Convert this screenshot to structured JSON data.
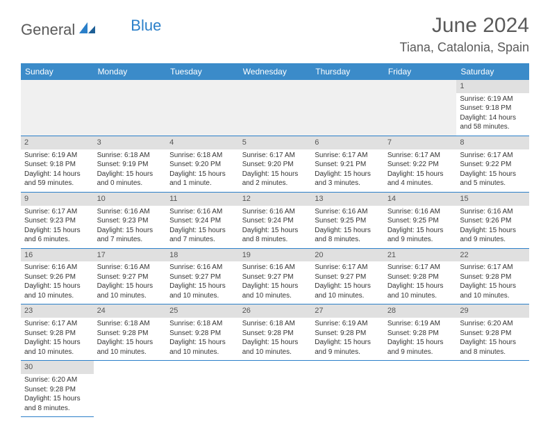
{
  "brand": {
    "part1": "General",
    "part2": "Blue"
  },
  "title": "June 2024",
  "location": "Tiana, Catalonia, Spain",
  "colors": {
    "header_bg": "#3b8bc9",
    "accent": "#2a7fc9",
    "daynum_bg": "#e0e0e0",
    "text": "#333333",
    "brand_gray": "#5a5a5a"
  },
  "day_headers": [
    "Sunday",
    "Monday",
    "Tuesday",
    "Wednesday",
    "Thursday",
    "Friday",
    "Saturday"
  ],
  "weeks": [
    [
      null,
      null,
      null,
      null,
      null,
      null,
      {
        "n": "1",
        "sunrise": "Sunrise: 6:19 AM",
        "sunset": "Sunset: 9:18 PM",
        "daylight": "Daylight: 14 hours and 58 minutes."
      }
    ],
    [
      {
        "n": "2",
        "sunrise": "Sunrise: 6:19 AM",
        "sunset": "Sunset: 9:18 PM",
        "daylight": "Daylight: 14 hours and 59 minutes."
      },
      {
        "n": "3",
        "sunrise": "Sunrise: 6:18 AM",
        "sunset": "Sunset: 9:19 PM",
        "daylight": "Daylight: 15 hours and 0 minutes."
      },
      {
        "n": "4",
        "sunrise": "Sunrise: 6:18 AM",
        "sunset": "Sunset: 9:20 PM",
        "daylight": "Daylight: 15 hours and 1 minute."
      },
      {
        "n": "5",
        "sunrise": "Sunrise: 6:17 AM",
        "sunset": "Sunset: 9:20 PM",
        "daylight": "Daylight: 15 hours and 2 minutes."
      },
      {
        "n": "6",
        "sunrise": "Sunrise: 6:17 AM",
        "sunset": "Sunset: 9:21 PM",
        "daylight": "Daylight: 15 hours and 3 minutes."
      },
      {
        "n": "7",
        "sunrise": "Sunrise: 6:17 AM",
        "sunset": "Sunset: 9:22 PM",
        "daylight": "Daylight: 15 hours and 4 minutes."
      },
      {
        "n": "8",
        "sunrise": "Sunrise: 6:17 AM",
        "sunset": "Sunset: 9:22 PM",
        "daylight": "Daylight: 15 hours and 5 minutes."
      }
    ],
    [
      {
        "n": "9",
        "sunrise": "Sunrise: 6:17 AM",
        "sunset": "Sunset: 9:23 PM",
        "daylight": "Daylight: 15 hours and 6 minutes."
      },
      {
        "n": "10",
        "sunrise": "Sunrise: 6:16 AM",
        "sunset": "Sunset: 9:23 PM",
        "daylight": "Daylight: 15 hours and 7 minutes."
      },
      {
        "n": "11",
        "sunrise": "Sunrise: 6:16 AM",
        "sunset": "Sunset: 9:24 PM",
        "daylight": "Daylight: 15 hours and 7 minutes."
      },
      {
        "n": "12",
        "sunrise": "Sunrise: 6:16 AM",
        "sunset": "Sunset: 9:24 PM",
        "daylight": "Daylight: 15 hours and 8 minutes."
      },
      {
        "n": "13",
        "sunrise": "Sunrise: 6:16 AM",
        "sunset": "Sunset: 9:25 PM",
        "daylight": "Daylight: 15 hours and 8 minutes."
      },
      {
        "n": "14",
        "sunrise": "Sunrise: 6:16 AM",
        "sunset": "Sunset: 9:25 PM",
        "daylight": "Daylight: 15 hours and 9 minutes."
      },
      {
        "n": "15",
        "sunrise": "Sunrise: 6:16 AM",
        "sunset": "Sunset: 9:26 PM",
        "daylight": "Daylight: 15 hours and 9 minutes."
      }
    ],
    [
      {
        "n": "16",
        "sunrise": "Sunrise: 6:16 AM",
        "sunset": "Sunset: 9:26 PM",
        "daylight": "Daylight: 15 hours and 10 minutes."
      },
      {
        "n": "17",
        "sunrise": "Sunrise: 6:16 AM",
        "sunset": "Sunset: 9:27 PM",
        "daylight": "Daylight: 15 hours and 10 minutes."
      },
      {
        "n": "18",
        "sunrise": "Sunrise: 6:16 AM",
        "sunset": "Sunset: 9:27 PM",
        "daylight": "Daylight: 15 hours and 10 minutes."
      },
      {
        "n": "19",
        "sunrise": "Sunrise: 6:16 AM",
        "sunset": "Sunset: 9:27 PM",
        "daylight": "Daylight: 15 hours and 10 minutes."
      },
      {
        "n": "20",
        "sunrise": "Sunrise: 6:17 AM",
        "sunset": "Sunset: 9:27 PM",
        "daylight": "Daylight: 15 hours and 10 minutes."
      },
      {
        "n": "21",
        "sunrise": "Sunrise: 6:17 AM",
        "sunset": "Sunset: 9:28 PM",
        "daylight": "Daylight: 15 hours and 10 minutes."
      },
      {
        "n": "22",
        "sunrise": "Sunrise: 6:17 AM",
        "sunset": "Sunset: 9:28 PM",
        "daylight": "Daylight: 15 hours and 10 minutes."
      }
    ],
    [
      {
        "n": "23",
        "sunrise": "Sunrise: 6:17 AM",
        "sunset": "Sunset: 9:28 PM",
        "daylight": "Daylight: 15 hours and 10 minutes."
      },
      {
        "n": "24",
        "sunrise": "Sunrise: 6:18 AM",
        "sunset": "Sunset: 9:28 PM",
        "daylight": "Daylight: 15 hours and 10 minutes."
      },
      {
        "n": "25",
        "sunrise": "Sunrise: 6:18 AM",
        "sunset": "Sunset: 9:28 PM",
        "daylight": "Daylight: 15 hours and 10 minutes."
      },
      {
        "n": "26",
        "sunrise": "Sunrise: 6:18 AM",
        "sunset": "Sunset: 9:28 PM",
        "daylight": "Daylight: 15 hours and 10 minutes."
      },
      {
        "n": "27",
        "sunrise": "Sunrise: 6:19 AM",
        "sunset": "Sunset: 9:28 PM",
        "daylight": "Daylight: 15 hours and 9 minutes."
      },
      {
        "n": "28",
        "sunrise": "Sunrise: 6:19 AM",
        "sunset": "Sunset: 9:28 PM",
        "daylight": "Daylight: 15 hours and 9 minutes."
      },
      {
        "n": "29",
        "sunrise": "Sunrise: 6:20 AM",
        "sunset": "Sunset: 9:28 PM",
        "daylight": "Daylight: 15 hours and 8 minutes."
      }
    ],
    [
      {
        "n": "30",
        "sunrise": "Sunrise: 6:20 AM",
        "sunset": "Sunset: 9:28 PM",
        "daylight": "Daylight: 15 hours and 8 minutes."
      },
      null,
      null,
      null,
      null,
      null,
      null
    ]
  ]
}
